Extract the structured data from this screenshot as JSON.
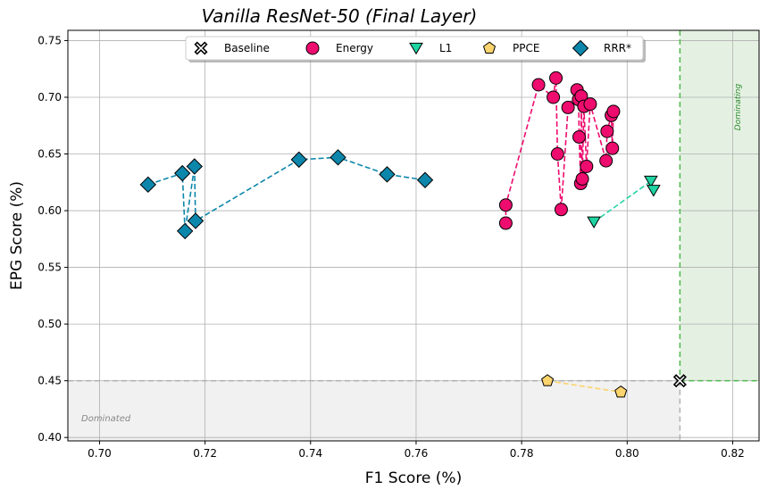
{
  "colors": {
    "baseline": "#ffffff",
    "energy": "#ee0c6e",
    "l1": "#1fd4a2",
    "l1_line": "#25d4a5",
    "ppce": "#fcd46e",
    "rrr": "#0c86ab",
    "dominating_fill": "#e4f1e2",
    "dominating_line": "#4cb84c",
    "dominated_fill": "#f1f1f1",
    "dominated_line": "#b0b0b0",
    "grid": "#b0b0b0"
  },
  "chart_data": {
    "type": "scatter",
    "title": "Vanilla ResNet-50 (Final Layer)",
    "xlabel": "F1 Score (%)",
    "ylabel": "EPG Score (%)",
    "xlim": [
      0.694,
      0.825
    ],
    "ylim": [
      0.397,
      0.759
    ],
    "xticks": [
      0.7,
      0.72,
      0.74,
      0.76,
      0.78,
      0.8,
      0.82
    ],
    "xtick_labels": [
      "0.70",
      "0.72",
      "0.74",
      "0.76",
      "0.78",
      "0.80",
      "0.82"
    ],
    "yticks": [
      0.4,
      0.45,
      0.5,
      0.55,
      0.6,
      0.65,
      0.7,
      0.75
    ],
    "ytick_labels": [
      "0.40",
      "0.45",
      "0.50",
      "0.55",
      "0.60",
      "0.65",
      "0.70",
      "0.75"
    ],
    "grid": true,
    "legend_position": "top-center",
    "annotations": {
      "dominating": "Dominating",
      "dominated": "Dominated"
    },
    "baseline": {
      "x": 0.81,
      "y": 0.45
    },
    "series": [
      {
        "name": "Baseline",
        "marker": "x",
        "line": false,
        "points": [
          [
            0.81,
            0.45
          ]
        ]
      },
      {
        "name": "Energy",
        "marker": "circle",
        "line": true,
        "points": [
          [
            0.777,
            0.589
          ],
          [
            0.777,
            0.605
          ],
          [
            0.7832,
            0.711
          ],
          [
            0.786,
            0.7
          ],
          [
            0.7865,
            0.717
          ],
          [
            0.7868,
            0.65
          ],
          [
            0.7875,
            0.601
          ],
          [
            0.7888,
            0.691
          ],
          [
            0.7905,
            0.7065
          ],
          [
            0.7908,
            0.698
          ],
          [
            0.7909,
            0.665
          ],
          [
            0.7912,
            0.624
          ],
          [
            0.7913,
            0.701
          ],
          [
            0.7915,
            0.628
          ],
          [
            0.7918,
            0.692
          ],
          [
            0.7923,
            0.639
          ],
          [
            0.793,
            0.694
          ],
          [
            0.796,
            0.644
          ],
          [
            0.7962,
            0.67
          ],
          [
            0.797,
            0.684
          ],
          [
            0.7972,
            0.655
          ],
          [
            0.7974,
            0.6875
          ]
        ]
      },
      {
        "name": "L1",
        "marker": "triangle-down",
        "line": true,
        "points": [
          [
            0.7937,
            0.59
          ],
          [
            0.8045,
            0.626
          ],
          [
            0.805,
            0.618
          ]
        ]
      },
      {
        "name": "PPCE",
        "marker": "pentagon",
        "line": true,
        "points": [
          [
            0.7849,
            0.45
          ],
          [
            0.7988,
            0.44
          ]
        ]
      },
      {
        "name": "RRR*",
        "marker": "diamond",
        "line": true,
        "points": [
          [
            0.7092,
            0.623
          ],
          [
            0.7157,
            0.633
          ],
          [
            0.7162,
            0.582
          ],
          [
            0.718,
            0.639
          ],
          [
            0.7182,
            0.591
          ],
          [
            0.7378,
            0.645
          ],
          [
            0.7452,
            0.647
          ],
          [
            0.7545,
            0.632
          ],
          [
            0.7617,
            0.627
          ]
        ]
      }
    ]
  }
}
